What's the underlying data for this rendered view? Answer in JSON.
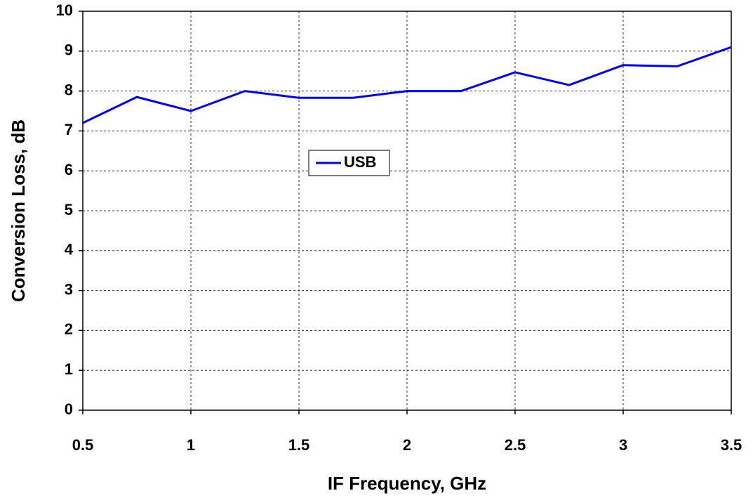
{
  "chart_data": {
    "type": "line",
    "x_label": "IF Frequency, GHz",
    "y_label": "Conversion Loss, dB",
    "x": [
      0.5,
      0.75,
      1,
      1.25,
      1.5,
      1.75,
      2,
      2.25,
      2.5,
      2.75,
      3,
      3.25,
      3.5
    ],
    "series": [
      {
        "name": "USB",
        "color": "#0000ff",
        "values": [
          7.2,
          7.85,
          7.5,
          8.0,
          7.83,
          7.83,
          8.0,
          8.0,
          8.47,
          8.15,
          8.65,
          8.62,
          9.1
        ]
      }
    ],
    "xlim": [
      0.5,
      3.5
    ],
    "xticks": [
      0.5,
      1,
      1.5,
      2,
      2.5,
      3,
      3.5
    ],
    "ylim": [
      0,
      10
    ],
    "yticks": [
      0,
      1,
      2,
      3,
      4,
      5,
      6,
      7,
      8,
      9,
      10
    ],
    "grid": true,
    "legend": "center"
  }
}
